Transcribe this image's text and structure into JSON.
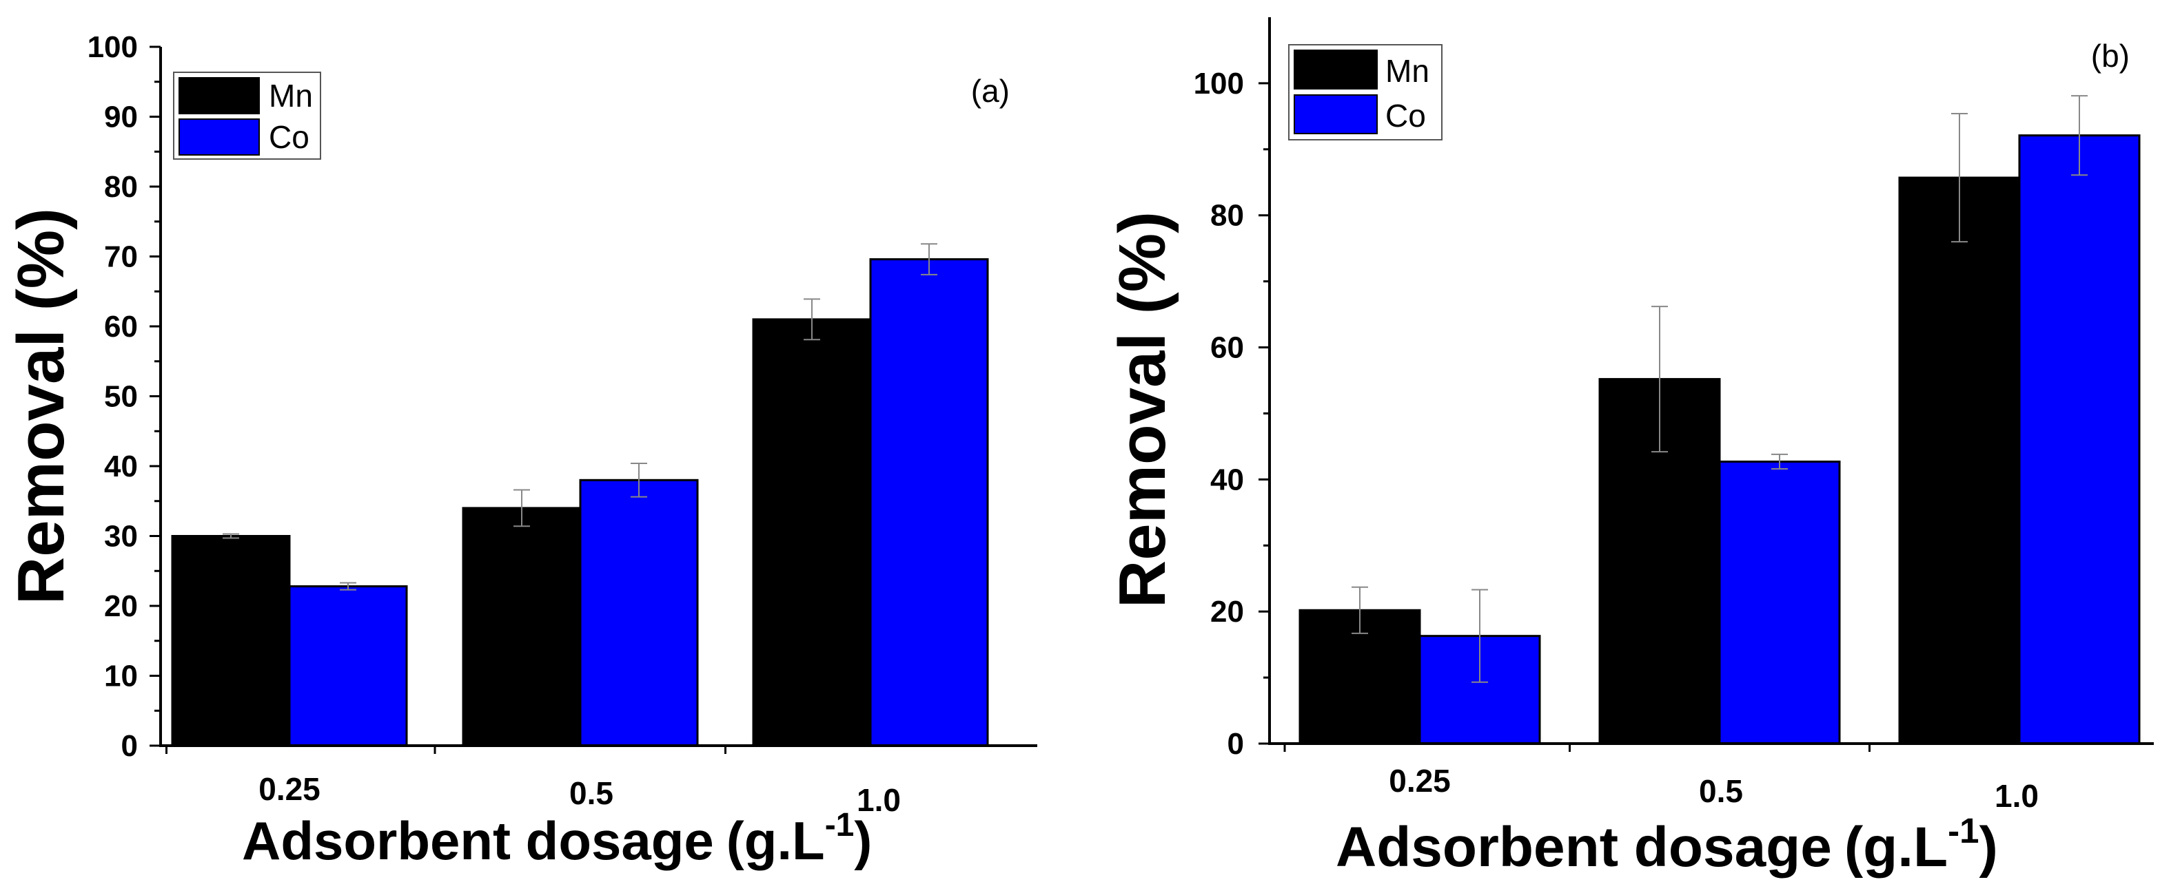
{
  "chart_data": [
    {
      "type": "bar",
      "panel_label": "(a)",
      "categories": [
        "0.25",
        "0.5",
        "1.0"
      ],
      "series": [
        {
          "name": "Mn",
          "color": "#000000",
          "values": [
            30,
            34,
            61
          ],
          "errors": [
            0.3,
            2.6,
            2.9
          ]
        },
        {
          "name": "Co",
          "color": "#0000ff",
          "values": [
            22.8,
            38,
            69.6
          ],
          "errors": [
            0.5,
            2.4,
            2.2
          ]
        }
      ],
      "xlabel_main": "Adsorbent dosage",
      "xlabel_unit_prefix": "(g.L",
      "xlabel_unit_exp": "-1",
      "xlabel_unit_suffix": ")",
      "ylabel": "Removal (%)",
      "ylim": [
        0,
        100
      ],
      "yticks": [
        "0",
        "10",
        "20",
        "30",
        "40",
        "50",
        "60",
        "70",
        "80",
        "90",
        "100"
      ],
      "legend_position": "top-left",
      "grid": false
    },
    {
      "type": "bar",
      "panel_label": "(b)",
      "categories": [
        "0.25",
        "0.5",
        "1.0"
      ],
      "series": [
        {
          "name": "Mn",
          "color": "#000000",
          "values": [
            20.2,
            55.2,
            85.7
          ],
          "errors": [
            3.5,
            11,
            9.7
          ]
        },
        {
          "name": "Co",
          "color": "#0000ff",
          "values": [
            16.3,
            42.7,
            92.1
          ],
          "errors": [
            7,
            1.1,
            6
          ]
        }
      ],
      "xlabel_main": "Adsorbent dosage",
      "xlabel_unit_prefix": "(g.L",
      "xlabel_unit_exp": "-1",
      "xlabel_unit_suffix": ")",
      "ylabel": "Removal (%)",
      "ylim": [
        0,
        110
      ],
      "yticks": [
        "0",
        "20",
        "40",
        "60",
        "80",
        "100"
      ],
      "legend_position": "top-left",
      "grid": false
    }
  ]
}
